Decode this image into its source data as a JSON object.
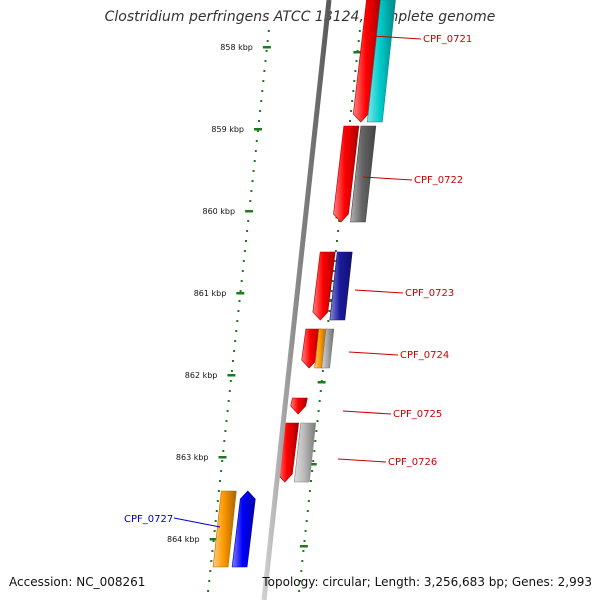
{
  "title": "Clostridium perfringens ATCC 13124, complete genome",
  "accession_label": "Accession: NC_008261",
  "summary_label": "Topology: circular; Length: 3,256,683 bp; Genes: 2,993",
  "ruler": {
    "ticks": [
      "858 kbp",
      "859 kbp",
      "860 kbp",
      "861 kbp",
      "862 kbp",
      "863 kbp",
      "864 kbp"
    ]
  },
  "genes": [
    {
      "label": "CPF_0721",
      "label_color": "#cc0000",
      "colors": [
        "#ff0000",
        "#00cccc"
      ]
    },
    {
      "label": "CPF_0722",
      "label_color": "#cc0000",
      "colors": [
        "#ff0000",
        "#666666"
      ]
    },
    {
      "label": "CPF_0723",
      "label_color": "#cc0000",
      "colors": [
        "#ff0000",
        "#1a1aa0"
      ]
    },
    {
      "label": "CPF_0724",
      "label_color": "#cc0000",
      "colors": [
        "#ff0000",
        "#ff9900",
        "#aaaaaa"
      ]
    },
    {
      "label": "CPF_0725",
      "label_color": "#cc0000",
      "colors": [
        "#ff0000"
      ]
    },
    {
      "label": "CPF_0726",
      "label_color": "#cc0000",
      "colors": [
        "#ff0000",
        "#bbbbbb"
      ]
    },
    {
      "label": "CPF_0727",
      "label_color": "#0000cc",
      "colors": [
        "#ff9900",
        "#0000ff"
      ]
    }
  ]
}
